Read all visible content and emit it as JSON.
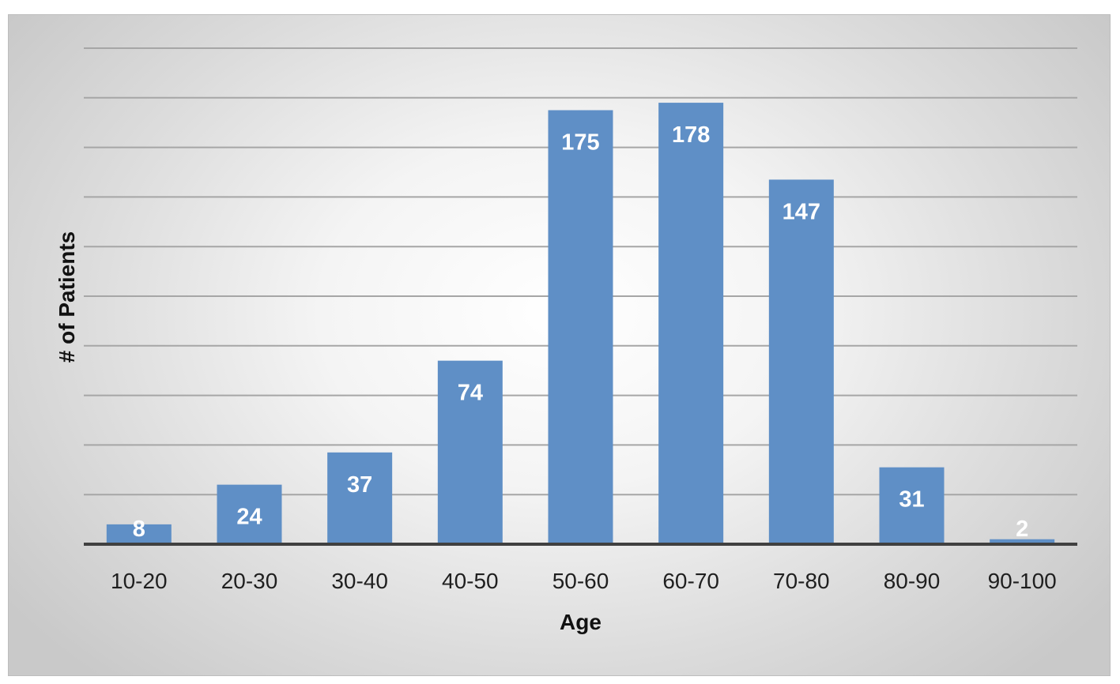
{
  "chart_data": {
    "type": "bar",
    "title": "",
    "xlabel": "Age",
    "ylabel": "# of Patients",
    "categories": [
      "10-20",
      "20-30",
      "30-40",
      "40-50",
      "50-60",
      "60-70",
      "70-80",
      "80-90",
      "90-100"
    ],
    "values": [
      8,
      24,
      37,
      74,
      175,
      178,
      147,
      31,
      2
    ],
    "ylim": [
      0,
      200
    ],
    "grid": true,
    "legend": "none",
    "colors": {
      "bar": "#5f8fc6",
      "label": "#ffffff",
      "grid": "#a6a6a6",
      "baseline": "#404040"
    }
  }
}
